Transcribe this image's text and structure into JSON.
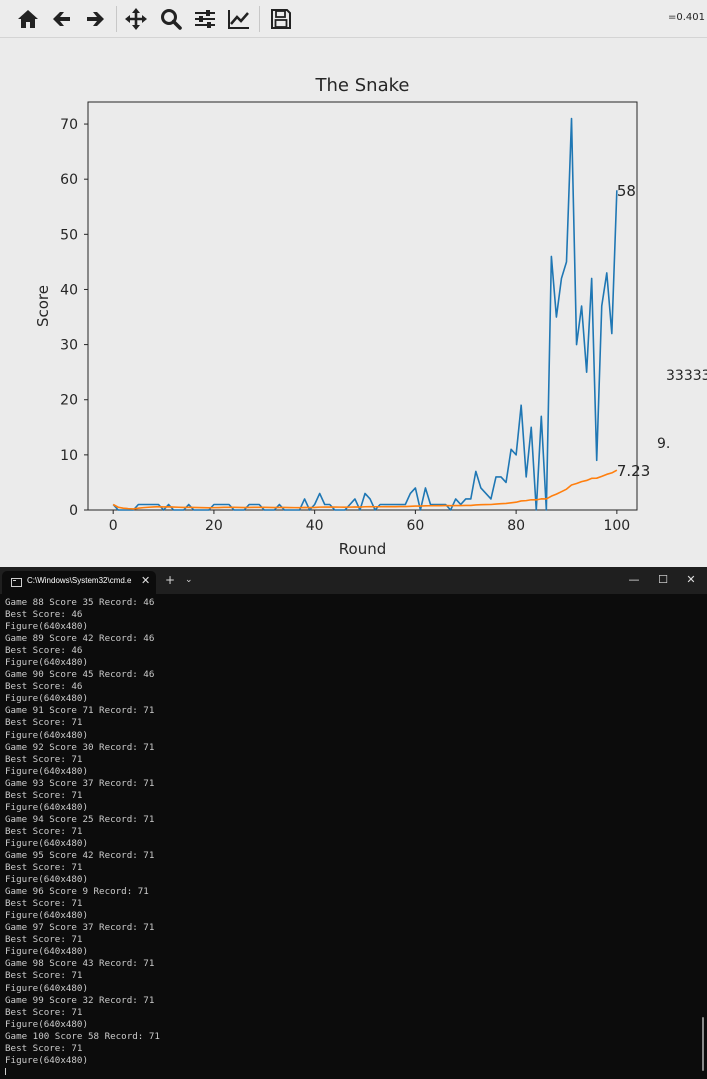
{
  "matplotlib_window": {
    "toolbar": {
      "buttons": [
        {
          "name": "home-icon"
        },
        {
          "name": "back-icon"
        },
        {
          "name": "forward-icon"
        },
        {
          "name": "pan-icon"
        },
        {
          "name": "zoom-icon"
        },
        {
          "name": "configure-subplots-icon"
        },
        {
          "name": "edit-axis-icon"
        },
        {
          "name": "save-icon"
        }
      ],
      "coordinate_readout": "=0.401"
    },
    "stray_texts": [
      "33333",
      "9."
    ]
  },
  "chart_data": {
    "type": "line",
    "title": "The Snake",
    "xlabel": "Round",
    "ylabel": "Score",
    "xlim": [
      -5,
      104
    ],
    "ylim": [
      0,
      74
    ],
    "xticks": [
      0,
      20,
      40,
      60,
      80,
      100
    ],
    "yticks": [
      0,
      10,
      20,
      30,
      40,
      50,
      60,
      70
    ],
    "grid": false,
    "series": [
      {
        "color": "#1f77b4",
        "values": [
          1,
          0,
          0,
          0,
          0,
          1,
          1,
          1,
          1,
          1,
          0,
          1,
          0,
          0,
          0,
          1,
          0,
          0,
          0,
          0,
          1,
          1,
          1,
          1,
          0,
          0,
          0,
          1,
          1,
          1,
          0,
          0,
          0,
          1,
          0,
          0,
          0,
          0,
          2,
          0,
          1,
          3,
          1,
          1,
          0,
          0,
          0,
          1,
          2,
          0,
          3,
          2,
          0,
          1,
          1,
          1,
          1,
          1,
          1,
          3,
          4,
          0,
          4,
          1,
          1,
          1,
          1,
          0,
          2,
          1,
          2,
          2,
          7,
          4,
          3,
          2,
          6,
          6,
          5,
          11,
          10,
          19,
          6,
          15,
          0,
          17,
          0,
          46,
          35,
          42,
          45,
          71,
          30,
          37,
          25,
          42,
          9,
          37,
          43,
          32,
          58
        ],
        "end_label": "58"
      },
      {
        "color": "#ff7f0e",
        "values": [
          1,
          0.5,
          0.33,
          0.25,
          0.2,
          0.33,
          0.43,
          0.5,
          0.56,
          0.6,
          0.55,
          0.58,
          0.54,
          0.5,
          0.47,
          0.5,
          0.47,
          0.44,
          0.42,
          0.4,
          0.43,
          0.45,
          0.48,
          0.5,
          0.48,
          0.46,
          0.44,
          0.46,
          0.48,
          0.5,
          0.48,
          0.47,
          0.45,
          0.47,
          0.46,
          0.44,
          0.43,
          0.42,
          0.46,
          0.45,
          0.46,
          0.52,
          0.53,
          0.54,
          0.53,
          0.52,
          0.51,
          0.52,
          0.55,
          0.54,
          0.59,
          0.6,
          0.59,
          0.59,
          0.6,
          0.61,
          0.61,
          0.62,
          0.63,
          0.67,
          0.72,
          0.71,
          0.76,
          0.77,
          0.78,
          0.79,
          0.8,
          0.79,
          0.8,
          0.8,
          0.82,
          0.83,
          0.92,
          0.96,
          0.99,
          1.0,
          1.07,
          1.14,
          1.19,
          1.3,
          1.41,
          1.64,
          1.7,
          1.86,
          1.84,
          2.02,
          2.0,
          2.51,
          2.88,
          3.32,
          3.78,
          4.53,
          4.8,
          5.15,
          5.36,
          5.74,
          5.77,
          6.09,
          6.47,
          6.73,
          7.23
        ],
        "end_label": "7.23"
      }
    ]
  },
  "terminal_window": {
    "tab_title": "C:\\Windows\\System32\\cmd.e",
    "tab_close": "✕",
    "new_tab": "+",
    "dropdown": "⌄",
    "controls": {
      "minimize": "—",
      "maximize": "☐",
      "close": "✕"
    },
    "lines": [
      "Game 88 Score 35 Record: 46",
      "Best Score: 46",
      "Figure(640x480)",
      "Game 89 Score 42 Record: 46",
      "Best Score: 46",
      "Figure(640x480)",
      "Game 90 Score 45 Record: 46",
      "Best Score: 46",
      "Figure(640x480)",
      "Game 91 Score 71 Record: 71",
      "Best Score: 71",
      "Figure(640x480)",
      "Game 92 Score 30 Record: 71",
      "Best Score: 71",
      "Figure(640x480)",
      "Game 93 Score 37 Record: 71",
      "Best Score: 71",
      "Figure(640x480)",
      "Game 94 Score 25 Record: 71",
      "Best Score: 71",
      "Figure(640x480)",
      "Game 95 Score 42 Record: 71",
      "Best Score: 71",
      "Figure(640x480)",
      "Game 96 Score 9 Record: 71",
      "Best Score: 71",
      "Figure(640x480)",
      "Game 97 Score 37 Record: 71",
      "Best Score: 71",
      "Figure(640x480)",
      "Game 98 Score 43 Record: 71",
      "Best Score: 71",
      "Figure(640x480)",
      "Game 99 Score 32 Record: 71",
      "Best Score: 71",
      "Figure(640x480)",
      "Game 100 Score 58 Record: 71",
      "Best Score: 71",
      "Figure(640x480)"
    ]
  }
}
